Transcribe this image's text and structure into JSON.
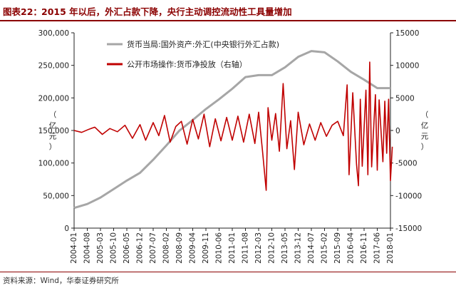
{
  "figure": {
    "label": "图表22：",
    "title": "2015 年以后，外汇占款下降，央行主动调控流动性工具量增加",
    "source": "资料来源：Wind，华泰证券研究所"
  },
  "colors": {
    "fx": "#a6a6a6",
    "omo": "#c00000",
    "accent": "#8b0000",
    "axis": "#222222"
  },
  "chart_data": {
    "type": "line",
    "left_axis": {
      "label": "（亿元）",
      "min": 0,
      "max": 300000,
      "ticks": [
        0,
        50000,
        100000,
        150000,
        200000,
        250000,
        300000
      ],
      "tick_labels": [
        "0",
        "50,000",
        "100,000",
        "150,000",
        "200,000",
        "250,000",
        "300,000"
      ]
    },
    "right_axis": {
      "label": "（亿元）",
      "min": -15000,
      "max": 15000,
      "ticks": [
        -15000,
        -10000,
        -5000,
        0,
        5000,
        10000,
        15000
      ],
      "tick_labels": [
        "-15000",
        "-10000",
        "-5000",
        "0",
        "5000",
        "10000",
        "15000"
      ]
    },
    "x_categories": [
      "2004-01",
      "2004-08",
      "2005-03",
      "2005-10",
      "2006-05",
      "2006-12",
      "2007-07",
      "2008-02",
      "2008-09",
      "2009-04",
      "2009-11",
      "2010-06",
      "2011-01",
      "2011-08",
      "2012-03",
      "2012-10",
      "2013-05",
      "2013-12",
      "2014-07",
      "2015-02",
      "2015-09",
      "2016-04",
      "2016-11",
      "2017-06",
      "2018-01"
    ],
    "series": [
      {
        "name": "货币当局:国外资产:外汇(中央银行外汇占款)",
        "axis": "left",
        "points": [
          [
            "2004-01",
            31000
          ],
          [
            "2004-08",
            37000
          ],
          [
            "2005-03",
            47000
          ],
          [
            "2005-10",
            60000
          ],
          [
            "2006-05",
            73000
          ],
          [
            "2006-12",
            85000
          ],
          [
            "2007-07",
            105000
          ],
          [
            "2008-02",
            127000
          ],
          [
            "2008-09",
            150000
          ],
          [
            "2009-04",
            166000
          ],
          [
            "2009-11",
            183000
          ],
          [
            "2010-06",
            198000
          ],
          [
            "2011-01",
            214000
          ],
          [
            "2011-08",
            232000
          ],
          [
            "2012-03",
            235000
          ],
          [
            "2012-10",
            235000
          ],
          [
            "2013-05",
            247000
          ],
          [
            "2013-12",
            263000
          ],
          [
            "2014-07",
            272000
          ],
          [
            "2015-02",
            270000
          ],
          [
            "2015-09",
            256000
          ],
          [
            "2016-04",
            240000
          ],
          [
            "2016-11",
            228000
          ],
          [
            "2017-06",
            215000
          ],
          [
            "2018-01",
            215000
          ]
        ]
      },
      {
        "name": "公开市场操作:货币净投放（右轴）",
        "axis": "right",
        "points": [
          [
            "2004-01",
            0
          ],
          [
            "2004-05",
            -300
          ],
          [
            "2004-09",
            200
          ],
          [
            "2004-12",
            500
          ],
          [
            "2005-04",
            -600
          ],
          [
            "2005-08",
            300
          ],
          [
            "2005-12",
            -200
          ],
          [
            "2006-04",
            800
          ],
          [
            "2006-08",
            -1200
          ],
          [
            "2006-12",
            900
          ],
          [
            "2007-03",
            -1500
          ],
          [
            "2007-07",
            1200
          ],
          [
            "2007-10",
            -800
          ],
          [
            "2008-01",
            2300
          ],
          [
            "2008-04",
            -1800
          ],
          [
            "2008-07",
            600
          ],
          [
            "2008-10",
            1400
          ],
          [
            "2009-01",
            -2100
          ],
          [
            "2009-04",
            1700
          ],
          [
            "2009-07",
            -1300
          ],
          [
            "2009-10",
            2500
          ],
          [
            "2010-01",
            -2500
          ],
          [
            "2010-04",
            1800
          ],
          [
            "2010-07",
            -1600
          ],
          [
            "2010-10",
            2000
          ],
          [
            "2011-01",
            -1500
          ],
          [
            "2011-04",
            2200
          ],
          [
            "2011-07",
            -1800
          ],
          [
            "2011-10",
            2500
          ],
          [
            "2012-01",
            -2000
          ],
          [
            "2012-03",
            2800
          ],
          [
            "2012-05",
            -3000
          ],
          [
            "2012-07",
            -9200
          ],
          [
            "2012-08",
            3500
          ],
          [
            "2012-10",
            -1500
          ],
          [
            "2012-12",
            2600
          ],
          [
            "2013-02",
            -3200
          ],
          [
            "2013-04",
            7200
          ],
          [
            "2013-06",
            -2800
          ],
          [
            "2013-08",
            1500
          ],
          [
            "2013-10",
            -6000
          ],
          [
            "2013-12",
            2800
          ],
          [
            "2014-03",
            -2200
          ],
          [
            "2014-06",
            1000
          ],
          [
            "2014-09",
            -1500
          ],
          [
            "2014-12",
            1200
          ],
          [
            "2015-03",
            -900
          ],
          [
            "2015-06",
            800
          ],
          [
            "2015-09",
            1400
          ],
          [
            "2015-12",
            -800
          ],
          [
            "2016-02",
            7000
          ],
          [
            "2016-03",
            -6800
          ],
          [
            "2016-05",
            5800
          ],
          [
            "2016-07",
            -5200
          ],
          [
            "2016-08",
            -8500
          ],
          [
            "2016-09",
            4800
          ],
          [
            "2016-10",
            -5500
          ],
          [
            "2016-12",
            6200
          ],
          [
            "2017-01",
            -6800
          ],
          [
            "2017-02",
            10500
          ],
          [
            "2017-03",
            -5600
          ],
          [
            "2017-05",
            5500
          ],
          [
            "2017-06",
            -6100
          ],
          [
            "2017-07",
            4700
          ],
          [
            "2017-09",
            -4800
          ],
          [
            "2017-10",
            4500
          ],
          [
            "2017-11",
            -3500
          ],
          [
            "2017-12",
            4800
          ],
          [
            "2018-01",
            -7700
          ],
          [
            "2018-02",
            -2500
          ]
        ]
      }
    ],
    "legend": {
      "placement": "top-left-inside"
    }
  }
}
